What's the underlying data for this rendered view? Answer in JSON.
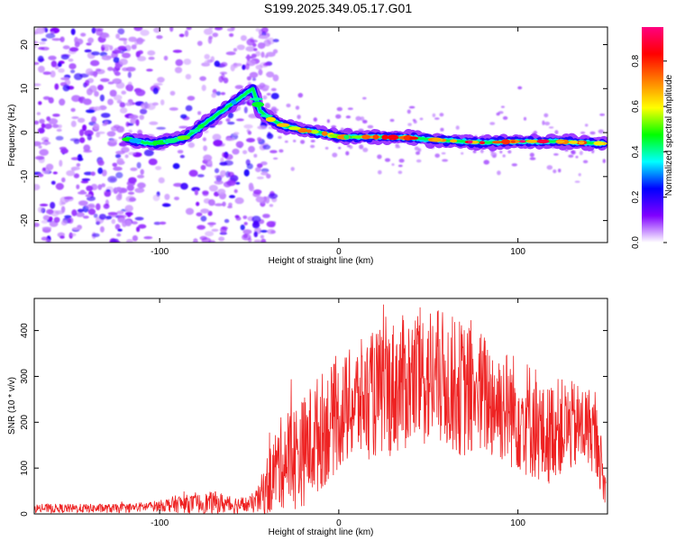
{
  "title": "S199.2025.349.05.17.G01",
  "chart_data": [
    {
      "type": "heatmap",
      "xlabel": "Height of straight line (km)",
      "ylabel": "Frequency (Hz)",
      "xlim": [
        -170,
        150
      ],
      "ylim": [
        -25,
        24
      ],
      "xticks": [
        -100,
        0,
        100
      ],
      "yticks": [
        -20,
        -10,
        0,
        10,
        20
      ],
      "colorbar": {
        "label": "Normalized spectral amplitude",
        "range": [
          0.0,
          0.95
        ],
        "ticks": [
          0.0,
          0.2,
          0.4,
          0.6,
          0.8
        ],
        "colors": [
          "#ffffff",
          "#8000ff",
          "#0000ff",
          "#00ffff",
          "#00ff00",
          "#ffff00",
          "#ff8000",
          "#ff0000",
          "#ff0080"
        ]
      },
      "ridge": {
        "x": [
          -118,
          -105,
          -95,
          -85,
          -75,
          -65,
          -55,
          -48,
          -44,
          -38,
          -30,
          -20,
          -10,
          0,
          20,
          40,
          60,
          80,
          100,
          120,
          148
        ],
        "freq": [
          -1.5,
          -2.5,
          -2,
          -1,
          2,
          5,
          8,
          10,
          5,
          3,
          1.5,
          0.5,
          0,
          -1,
          -1,
          -1.2,
          -1.8,
          -2.3,
          -2,
          -2,
          -2.5
        ]
      },
      "noise_region": {
        "x": [
          -170,
          -45
        ],
        "freq": [
          -25,
          24
        ]
      }
    },
    {
      "type": "line",
      "xlabel": "Height of straight line (km)",
      "ylabel": "SNR (10 * v/v)",
      "xlim": [
        -170,
        150
      ],
      "ylim": [
        0,
        470
      ],
      "xticks": [
        -100,
        0,
        100
      ],
      "yticks": [
        0,
        100,
        200,
        300,
        400
      ],
      "line_color": "#ee2222",
      "envelope": {
        "x": [
          -170,
          -120,
          -100,
          -90,
          -80,
          -70,
          -60,
          -50,
          -45,
          -40,
          -35,
          -30,
          -25,
          -20,
          -15,
          -10,
          0,
          10,
          20,
          30,
          40,
          50,
          60,
          70,
          80,
          90,
          100,
          110,
          115,
          120,
          130,
          140,
          145,
          148
        ],
        "base": [
          12,
          12,
          18,
          22,
          22,
          25,
          20,
          20,
          30,
          60,
          100,
          120,
          125,
          135,
          160,
          180,
          215,
          245,
          260,
          275,
          290,
          300,
          290,
          270,
          260,
          240,
          220,
          200,
          160,
          190,
          190,
          190,
          150,
          60
        ],
        "spread": [
          10,
          10,
          12,
          20,
          20,
          25,
          20,
          18,
          30,
          70,
          90,
          110,
          120,
          120,
          130,
          130,
          120,
          130,
          140,
          150,
          150,
          160,
          150,
          150,
          140,
          130,
          130,
          130,
          110,
          110,
          100,
          90,
          80,
          50
        ]
      }
    }
  ]
}
